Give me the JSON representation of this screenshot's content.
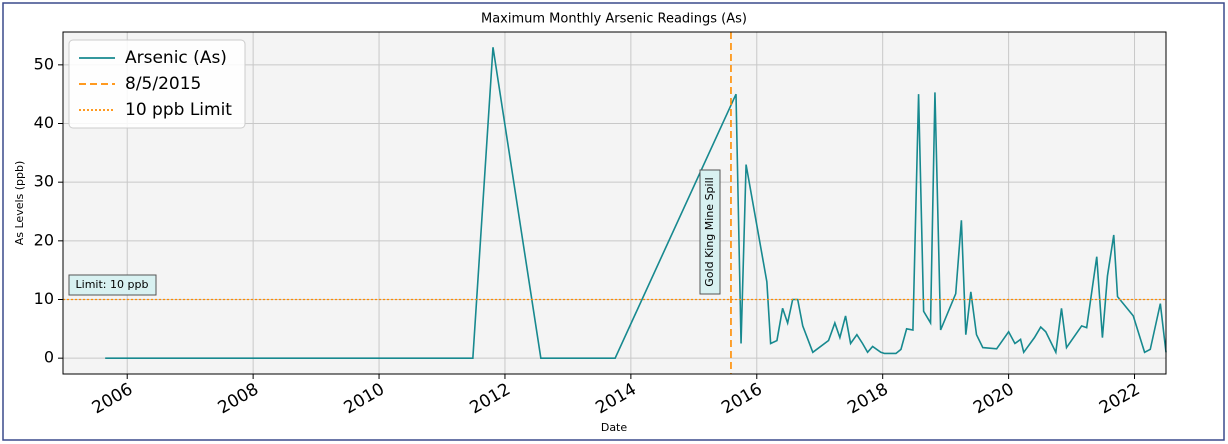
{
  "chart_data": {
    "type": "line",
    "title": "Maximum Monthly Arsenic Readings (As)",
    "x_label": "Date",
    "y_label": "As Levels (ppb)",
    "x": [
      2005.65,
      2011.49,
      2011.81,
      2012.57,
      2013.75,
      2015.67,
      2015.75,
      2015.83,
      2016.16,
      2016.22,
      2016.32,
      2016.41,
      2016.49,
      2016.57,
      2016.65,
      2016.73,
      2016.89,
      2017.14,
      2017.24,
      2017.32,
      2017.41,
      2017.49,
      2017.59,
      2017.68,
      2017.76,
      2017.84,
      2017.97,
      2018.03,
      2018.21,
      2018.29,
      2018.38,
      2018.48,
      2018.57,
      2018.65,
      2018.76,
      2018.83,
      2018.92,
      2019.16,
      2019.25,
      2019.32,
      2019.4,
      2019.49,
      2019.59,
      2019.81,
      2020.0,
      2020.1,
      2020.19,
      2020.24,
      2020.41,
      2020.51,
      2020.59,
      2020.75,
      2020.84,
      2020.92,
      2021.16,
      2021.24,
      2021.4,
      2021.49,
      2021.57,
      2021.67,
      2021.73,
      2021.98,
      2022.16,
      2022.25,
      2022.41,
      2022.5
    ],
    "series": [
      {
        "name": "Arsenic (As)",
        "color": "#17898f",
        "values": [
          0,
          0,
          53,
          0,
          0,
          45,
          2.5,
          33,
          13,
          2.5,
          3,
          8.5,
          6,
          10,
          10,
          5.5,
          1,
          3,
          6,
          3.5,
          7.2,
          2.5,
          4,
          2.5,
          1,
          2,
          1,
          0.8,
          0.8,
          1.5,
          5,
          4.8,
          45,
          8,
          6,
          45.3,
          4.8,
          11,
          23.5,
          4,
          11.3,
          4,
          1.8,
          1.6,
          4.5,
          2.5,
          3.2,
          1,
          3.5,
          5.3,
          4.5,
          1,
          8.5,
          1.8,
          5.5,
          5.2,
          17.3,
          3.5,
          14,
          21,
          10.5,
          7.2,
          1,
          1.5,
          9.3,
          1
        ]
      }
    ],
    "reference_lines": [
      {
        "name": "8/5/2015",
        "x": 2015.59,
        "color": "#ff8c00",
        "style": "dashed"
      },
      {
        "name": "10 ppb Limit",
        "y": 10,
        "color": "#ff8c00",
        "style": "dotted"
      }
    ],
    "annotations": [
      "Gold King Mine Spill",
      "Limit: 10 ppb"
    ],
    "xlim": [
      2004.98,
      2022.5
    ],
    "xticks": [
      2006,
      2008,
      2010,
      2012,
      2014,
      2016,
      2018,
      2020,
      2022
    ],
    "ylim": [
      -2.7,
      55.6
    ],
    "yticks": [
      0,
      10,
      20,
      30,
      40,
      50
    ],
    "grid": true,
    "legend": "upper left"
  }
}
